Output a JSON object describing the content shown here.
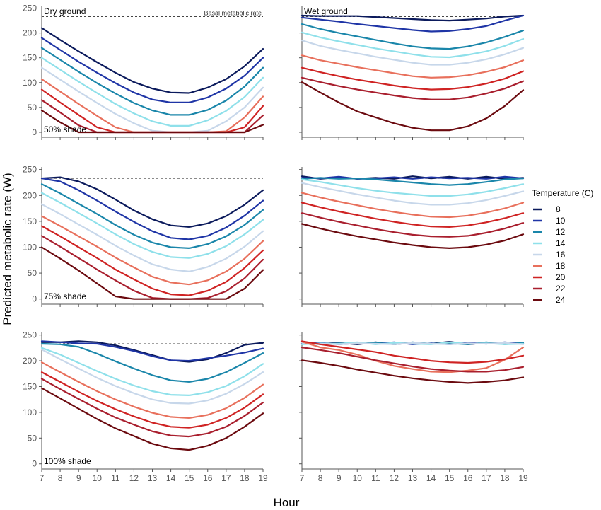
{
  "chart_data": {
    "type": "line",
    "ylabel": "Predicted metabolic rate (W)",
    "xlabel": "Hour",
    "x": [
      7,
      8,
      9,
      10,
      11,
      12,
      13,
      14,
      15,
      16,
      17,
      18,
      19
    ],
    "xlim": [
      7,
      19
    ],
    "ylim": [
      -10,
      255
    ],
    "yticks": [
      0,
      50,
      100,
      150,
      200,
      250
    ],
    "basal_rate": 233,
    "basal_label": "Basal metabolic rate",
    "grid": false,
    "legend": {
      "title": "Temperature (C)",
      "placement": "right",
      "entries": [
        {
          "label": "8",
          "color": "#0b1a5c"
        },
        {
          "label": "10",
          "color": "#1f35a6"
        },
        {
          "label": "12",
          "color": "#1a86aa"
        },
        {
          "label": "14",
          "color": "#8fe0ea"
        },
        {
          "label": "16",
          "color": "#c7d7ea"
        },
        {
          "label": "18",
          "color": "#e8705c"
        },
        {
          "label": "20",
          "color": "#cf2323"
        },
        {
          "label": "22",
          "color": "#a91f2e"
        },
        {
          "label": "24",
          "color": "#6b0a0f"
        }
      ]
    },
    "panels": [
      {
        "id": "dry-50",
        "row": 0,
        "col": 0,
        "title": "Dry ground",
        "shade_label": "50% shade",
        "show_basal_label": true,
        "series": [
          {
            "values": [
              210,
              186,
              163,
              141,
              120,
              101,
              88,
              80,
              79,
              90,
              107,
              133,
              168
            ]
          },
          {
            "values": [
              190,
              166,
              142,
              120,
              99,
              80,
              66,
              60,
              60,
              70,
              88,
              114,
              150
            ]
          },
          {
            "values": [
              170,
              146,
              122,
              99,
              78,
              59,
              44,
              35,
              35,
              45,
              64,
              92,
              130
            ]
          },
          {
            "values": [
              150,
              126,
              102,
              79,
              57,
              38,
              22,
              13,
              13,
              24,
              43,
              71,
              110
            ]
          },
          {
            "values": [
              130,
              106,
              82,
              59,
              37,
              18,
              3,
              0,
              0,
              3,
              22,
              50,
              90
            ]
          },
          {
            "values": [
              107,
              82,
              57,
              33,
              10,
              0,
              0,
              0,
              0,
              0,
              2,
              30,
              72
            ]
          },
          {
            "values": [
              86,
              60,
              35,
              10,
              0,
              0,
              0,
              0,
              0,
              0,
              0,
              10,
              53
            ]
          },
          {
            "values": [
              65,
              40,
              14,
              0,
              0,
              0,
              0,
              0,
              0,
              0,
              0,
              0,
              34
            ]
          },
          {
            "values": [
              44,
              20,
              0,
              0,
              0,
              0,
              0,
              0,
              0,
              0,
              0,
              0,
              15
            ]
          }
        ]
      },
      {
        "id": "wet-50",
        "row": 0,
        "col": 1,
        "title": "Wet ground",
        "shade_label": "",
        "show_basal_label": false,
        "series": [
          {
            "values": [
              235,
              234,
              234,
              234,
              232,
              230,
              228,
              226,
              225,
              227,
              229,
              233,
              235
            ]
          },
          {
            "values": [
              231,
              227,
              223,
              218,
              214,
              210,
              206,
              203,
              204,
              208,
              214,
              225,
              235
            ]
          },
          {
            "values": [
              218,
              208,
              200,
              193,
              186,
              179,
              173,
              169,
              168,
              173,
              181,
              192,
              205
            ]
          },
          {
            "values": [
              201,
              191,
              183,
              176,
              169,
              163,
              157,
              152,
              151,
              156,
              163,
              174,
              188
            ]
          },
          {
            "values": [
              185,
              174,
              166,
              159,
              152,
              146,
              140,
              136,
              136,
              140,
              147,
              157,
              170
            ]
          },
          {
            "values": [
              155,
              145,
              138,
              131,
              125,
              119,
              113,
              110,
              111,
              115,
              122,
              131,
              145
            ]
          },
          {
            "values": [
              130,
              121,
              113,
              106,
              100,
              94,
              89,
              86,
              87,
              91,
              98,
              108,
              123
            ]
          },
          {
            "values": [
              110,
              101,
              93,
              86,
              80,
              74,
              69,
              66,
              66,
              70,
              78,
              88,
              103
            ]
          },
          {
            "values": [
              101,
              80,
              60,
              42,
              30,
              18,
              9,
              4,
              4,
              12,
              28,
              53,
              85
            ]
          }
        ]
      },
      {
        "id": "dry-75",
        "row": 1,
        "col": 0,
        "title": "",
        "shade_label": "75% shade",
        "show_basal_label": false,
        "series": [
          {
            "values": [
              233,
              235,
              227,
              212,
              192,
              171,
              154,
              142,
              139,
              146,
              160,
              182,
              210
            ]
          },
          {
            "values": [
              233,
              227,
              210,
              190,
              169,
              149,
              131,
              118,
              115,
              122,
              138,
              161,
              190
            ]
          },
          {
            "values": [
              222,
              204,
              184,
              164,
              143,
              124,
              109,
              100,
              98,
              106,
              121,
              143,
              172
            ]
          },
          {
            "values": [
              205,
              186,
              166,
              146,
              125,
              106,
              91,
              81,
              79,
              87,
              102,
              125,
              153
            ]
          },
          {
            "values": [
              183,
              164,
              144,
              124,
              103,
              84,
              67,
              57,
              53,
              62,
              78,
              101,
              131
            ]
          },
          {
            "values": [
              160,
              141,
              121,
              101,
              80,
              61,
              43,
              32,
              28,
              36,
              53,
              78,
              112
            ]
          },
          {
            "values": [
              141,
              121,
              100,
              79,
              57,
              38,
              20,
              9,
              7,
              16,
              33,
              60,
              94
            ]
          },
          {
            "values": [
              122,
              101,
              79,
              57,
              36,
              16,
              2,
              0,
              0,
              2,
              15,
              40,
              76
            ]
          },
          {
            "values": [
              100,
              78,
              55,
              30,
              5,
              0,
              0,
              0,
              0,
              0,
              0,
              20,
              56
            ]
          }
        ]
      },
      {
        "id": "wet-75",
        "row": 1,
        "col": 1,
        "title": "",
        "shade_label": "",
        "show_basal_label": false,
        "series": [
          {
            "values": [
              237,
              232,
              235,
              232,
              234,
              232,
              237,
              233,
              236,
              232,
              236,
              232,
              234
            ]
          },
          {
            "values": [
              234,
              233,
              236,
              232,
              233,
              235,
              232,
              235,
              233,
              234,
              232,
              236,
              233
            ]
          },
          {
            "values": [
              232,
              234,
              232,
              233,
              231,
              228,
              225,
              222,
              220,
              222,
              226,
              231,
              233
            ]
          },
          {
            "values": [
              231,
              226,
              220,
              214,
              209,
              205,
              202,
              199,
              199,
              202,
              207,
              214,
              222
            ]
          },
          {
            "values": [
              224,
              216,
              209,
              202,
              196,
              190,
              185,
              182,
              182,
              185,
              191,
              199,
              208
            ]
          },
          {
            "values": [
              205,
              196,
              188,
              181,
              174,
              168,
              163,
              159,
              158,
              161,
              167,
              175,
              186
            ]
          },
          {
            "values": [
              186,
              177,
              169,
              162,
              155,
              149,
              144,
              140,
              139,
              142,
              148,
              156,
              166
            ]
          },
          {
            "values": [
              166,
              157,
              149,
              142,
              135,
              129,
              124,
              121,
              120,
              122,
              128,
              136,
              147
            ]
          },
          {
            "values": [
              145,
              136,
              128,
              121,
              115,
              109,
              104,
              100,
              98,
              100,
              105,
              113,
              125
            ]
          }
        ]
      },
      {
        "id": "dry-100",
        "row": 2,
        "col": 0,
        "title": "",
        "shade_label": "100% shade",
        "show_basal_label": false,
        "series": [
          {
            "values": [
              236,
              236,
              238,
              236,
              230,
              221,
              211,
              201,
              198,
              203,
              215,
              231,
              235
            ]
          },
          {
            "values": [
              238,
              236,
              234,
              233,
              227,
              219,
              209,
              201,
              200,
              205,
              210,
              216,
              224
            ]
          },
          {
            "values": [
              233,
              232,
              227,
              214,
              199,
              185,
              172,
              162,
              159,
              165,
              178,
              196,
              215
            ]
          },
          {
            "values": [
              225,
              212,
              196,
              180,
              165,
              152,
              141,
              134,
              133,
              139,
              151,
              170,
              194
            ]
          },
          {
            "values": [
              222,
              203,
              185,
              167,
              151,
              137,
              125,
              118,
              117,
              123,
              136,
              155,
              178
            ]
          },
          {
            "values": [
              197,
              178,
              159,
              141,
              125,
              111,
              99,
              91,
              89,
              95,
              108,
              128,
              154
            ]
          },
          {
            "values": [
              178,
              159,
              140,
              122,
              106,
              92,
              80,
              72,
              70,
              76,
              89,
              109,
              135
            ]
          },
          {
            "values": [
              165,
              145,
              126,
              107,
              90,
              76,
              63,
              55,
              53,
              59,
              72,
              93,
              119
            ]
          },
          {
            "values": [
              147,
              127,
              107,
              87,
              69,
              54,
              39,
              30,
              27,
              35,
              50,
              72,
              98
            ]
          }
        ]
      },
      {
        "id": "wet-100",
        "row": 2,
        "col": 1,
        "title": "",
        "shade_label": "",
        "show_basal_label": false,
        "series": [
          {
            "values": [
              234,
              233,
              235,
              232,
              236,
              232,
              235,
              233,
              237,
              232,
              235,
              233,
              234
            ]
          },
          {
            "values": [
              233,
              235,
              232,
              234,
              233,
              236,
              232,
              234,
              232,
              235,
              233,
              236,
              233
            ]
          },
          {
            "values": [
              236,
              232,
              234,
              233,
              235,
              232,
              236,
              233,
              234,
              232,
              236,
              232,
              235
            ]
          },
          {
            "values": [
              232,
              234,
              233,
              236,
              232,
              235,
              233,
              232,
              236,
              233,
              234,
              232,
              233
            ]
          },
          {
            "values": [
              235,
              233,
              232,
              234,
              233,
              232,
              235,
              233,
              232,
              234,
              233,
              235,
              232
            ]
          },
          {
            "values": [
              237,
              226,
              221,
              212,
              200,
              190,
              184,
              179,
              178,
              181,
              186,
              202,
              226
            ]
          },
          {
            "values": [
              238,
              232,
              227,
              222,
              217,
              210,
              205,
              200,
              197,
              196,
              198,
              203,
              210
            ]
          },
          {
            "values": [
              226,
              221,
              215,
              208,
              201,
              195,
              189,
              184,
              181,
              179,
              179,
              182,
              188
            ]
          },
          {
            "values": [
              201,
              196,
              190,
              183,
              177,
              171,
              166,
              162,
              159,
              157,
              159,
              162,
              168
            ]
          }
        ]
      }
    ]
  }
}
